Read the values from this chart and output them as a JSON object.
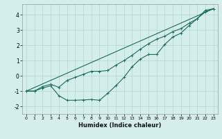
{
  "xlabel": "Humidex (Indice chaleur)",
  "ylabel": "",
  "background_color": "#d4eeec",
  "grid_color": "#b8d8d6",
  "line_color": "#1a6b5a",
  "xlim": [
    -0.5,
    23.5
  ],
  "ylim": [
    -2.5,
    4.7
  ],
  "xticks": [
    0,
    1,
    2,
    3,
    4,
    5,
    6,
    7,
    8,
    9,
    10,
    11,
    12,
    13,
    14,
    15,
    16,
    17,
    18,
    19,
    20,
    21,
    22,
    23
  ],
  "yticks": [
    -2,
    -1,
    0,
    1,
    2,
    3,
    4
  ],
  "line1_x": [
    0,
    1,
    2,
    3,
    4,
    5,
    6,
    7,
    8,
    9,
    10,
    11,
    12,
    13,
    14,
    15,
    16,
    17,
    18,
    19,
    20,
    21,
    22,
    23
  ],
  "line1_y": [
    -1.0,
    -1.0,
    -0.8,
    -0.65,
    -1.3,
    -1.6,
    -1.6,
    -1.58,
    -1.55,
    -1.6,
    -1.15,
    -0.65,
    -0.1,
    0.6,
    1.1,
    1.4,
    1.4,
    2.05,
    2.55,
    2.8,
    3.3,
    3.75,
    4.3,
    4.4
  ],
  "line2_x": [
    0,
    1,
    2,
    3,
    4,
    5,
    6,
    7,
    8,
    9,
    10,
    11,
    12,
    13,
    14,
    15,
    16,
    17,
    18,
    19,
    20,
    21,
    22,
    23
  ],
  "line2_y": [
    -1.0,
    -1.0,
    -0.7,
    -0.55,
    -0.75,
    -0.3,
    -0.1,
    0.1,
    0.3,
    0.3,
    0.35,
    0.7,
    1.0,
    1.35,
    1.75,
    2.1,
    2.4,
    2.6,
    2.9,
    3.1,
    3.45,
    3.75,
    4.2,
    4.4
  ],
  "line3_x": [
    0,
    23
  ],
  "line3_y": [
    -1.0,
    4.4
  ]
}
